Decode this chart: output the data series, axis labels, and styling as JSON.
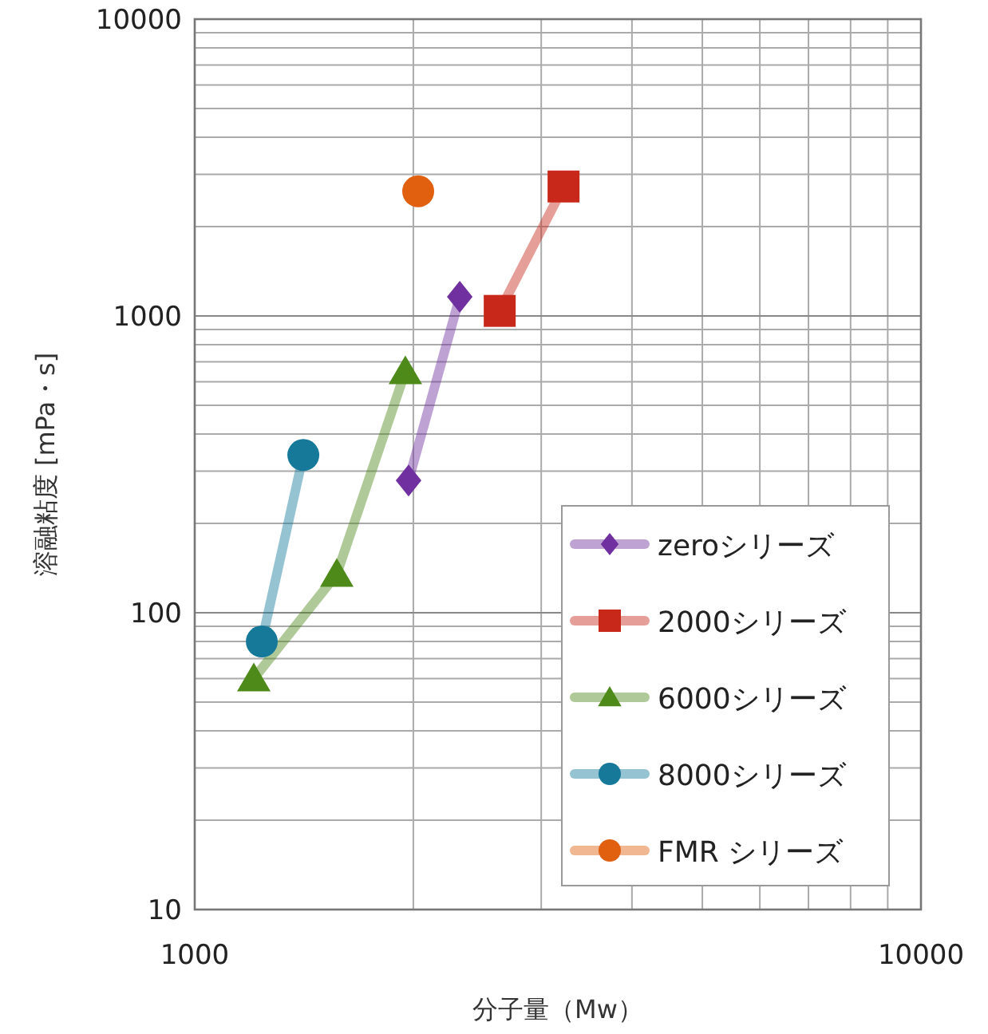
{
  "chart_data": {
    "type": "line",
    "xlabel": "分子量（Mw）",
    "ylabel": "溶融粘度 [mPa・s]",
    "log": "xy",
    "xlim": [
      1000,
      10000
    ],
    "ylim": [
      10,
      10000
    ],
    "xticks": [
      1000,
      10000
    ],
    "yticks": [
      10,
      100,
      1000,
      10000
    ],
    "grid": true,
    "legend": "bottom right",
    "line_style": "solid",
    "series": [
      {
        "name": "zeroシリーズ",
        "color": "#7030a0",
        "marker": "diamond",
        "x": [
          1970,
          2317
        ],
        "values": [
          279,
          1160
        ]
      },
      {
        "name": "2000シリーズ",
        "color": "#c8281a",
        "marker": "square",
        "x": [
          2630,
          3220
        ],
        "values": [
          1040,
          2730
        ]
      },
      {
        "name": "6000シリーズ",
        "color": "#4e8a1a",
        "marker": "triangle",
        "x": [
          1206,
          1569,
          1950
        ],
        "values": [
          60,
          135,
          650
        ]
      },
      {
        "name": "8000シリーズ",
        "color": "#16799a",
        "marker": "circle",
        "x": [
          1237,
          1411
        ],
        "values": [
          80,
          340
        ]
      },
      {
        "name": "FMR シリーズ",
        "color": "#e06010",
        "marker": "circle",
        "x": [
          2031
        ],
        "values": [
          2630
        ]
      }
    ]
  }
}
